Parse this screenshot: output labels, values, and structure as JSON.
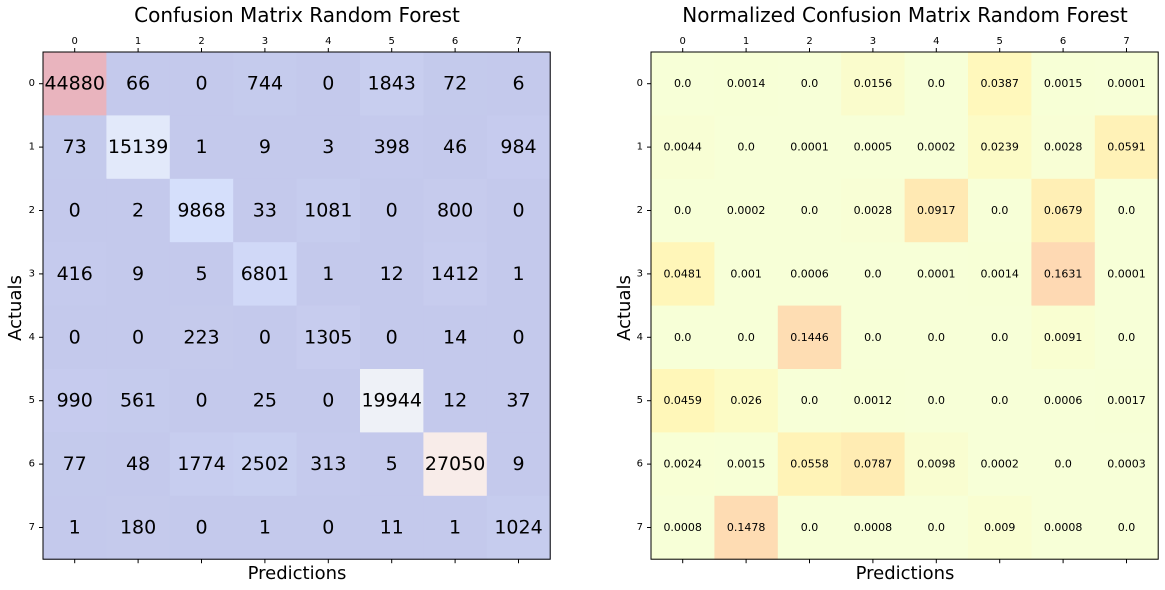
{
  "chart_data": [
    {
      "type": "heatmap",
      "title": "Confusion Matrix Random Forest",
      "xlabel": "Predictions",
      "ylabel": "Actuals",
      "x_ticks": [
        "0",
        "1",
        "2",
        "3",
        "4",
        "5",
        "6",
        "7"
      ],
      "y_ticks": [
        "0",
        "1",
        "2",
        "3",
        "4",
        "5",
        "6",
        "7"
      ],
      "colormap": "coolwarm",
      "values": [
        [
          44880,
          66,
          0,
          744,
          0,
          1843,
          72,
          6
        ],
        [
          73,
          15139,
          1,
          9,
          3,
          398,
          46,
          984
        ],
        [
          0,
          2,
          9868,
          33,
          1081,
          0,
          800,
          0
        ],
        [
          416,
          9,
          5,
          6801,
          1,
          12,
          1412,
          1
        ],
        [
          0,
          0,
          223,
          0,
          1305,
          0,
          14,
          0
        ],
        [
          990,
          561,
          0,
          25,
          0,
          19944,
          12,
          37
        ],
        [
          77,
          48,
          1774,
          2502,
          313,
          5,
          27050,
          9
        ],
        [
          1,
          180,
          0,
          1,
          0,
          11,
          1,
          1024
        ]
      ],
      "cell_labels": [
        [
          "44880",
          "66",
          "0",
          "744",
          "0",
          "1843",
          "72",
          "6"
        ],
        [
          "73",
          "15139",
          "1",
          "9",
          "3",
          "398",
          "46",
          "984"
        ],
        [
          "0",
          "2",
          "9868",
          "33",
          "1081",
          "0",
          "800",
          "0"
        ],
        [
          "416",
          "9",
          "5",
          "6801",
          "1",
          "12",
          "1412",
          "1"
        ],
        [
          "0",
          "0",
          "223",
          "0",
          "1305",
          "0",
          "14",
          "0"
        ],
        [
          "990",
          "561",
          "0",
          "25",
          "0",
          "19944",
          "12",
          "37"
        ],
        [
          "77",
          "48",
          "1774",
          "2502",
          "313",
          "5",
          "27050",
          "9"
        ],
        [
          "1",
          "180",
          "0",
          "1",
          "0",
          "11",
          "1",
          "1024"
        ]
      ]
    },
    {
      "type": "heatmap",
      "title": "Normalized Confusion Matrix Random Forest",
      "xlabel": "Predictions",
      "ylabel": "Actuals",
      "x_ticks": [
        "0",
        "1",
        "2",
        "3",
        "4",
        "5",
        "6",
        "7"
      ],
      "y_ticks": [
        "0",
        "1",
        "2",
        "3",
        "4",
        "5",
        "6",
        "7"
      ],
      "colormap": "Wistia",
      "values": [
        [
          0.0,
          0.0014,
          0.0,
          0.0156,
          0.0,
          0.0387,
          0.0015,
          0.0001
        ],
        [
          0.0044,
          0.0,
          0.0001,
          0.0005,
          0.0002,
          0.0239,
          0.0028,
          0.0591
        ],
        [
          0.0,
          0.0002,
          0.0,
          0.0028,
          0.0917,
          0.0,
          0.0679,
          0.0
        ],
        [
          0.0481,
          0.001,
          0.0006,
          0.0,
          0.0001,
          0.0014,
          0.1631,
          0.0001
        ],
        [
          0.0,
          0.0,
          0.1446,
          0.0,
          0.0,
          0.0,
          0.0091,
          0.0
        ],
        [
          0.0459,
          0.026,
          0.0,
          0.0012,
          0.0,
          0.0,
          0.0006,
          0.0017
        ],
        [
          0.0024,
          0.0015,
          0.0558,
          0.0787,
          0.0098,
          0.0002,
          0.0,
          0.0003
        ],
        [
          0.0008,
          0.1478,
          0.0,
          0.0008,
          0.0,
          0.009,
          0.0008,
          0.0
        ]
      ],
      "cell_labels": [
        [
          "0.0",
          "0.0014",
          "0.0",
          "0.0156",
          "0.0",
          "0.0387",
          "0.0015",
          "0.0001"
        ],
        [
          "0.0044",
          "0.0",
          "0.0001",
          "0.0005",
          "0.0002",
          "0.0239",
          "0.0028",
          "0.0591"
        ],
        [
          "0.0",
          "0.0002",
          "0.0",
          "0.0028",
          "0.0917",
          "0.0",
          "0.0679",
          "0.0"
        ],
        [
          "0.0481",
          "0.001",
          "0.0006",
          "0.0",
          "0.0001",
          "0.0014",
          "0.1631",
          "0.0001"
        ],
        [
          "0.0",
          "0.0",
          "0.1446",
          "0.0",
          "0.0",
          "0.0",
          "0.0091",
          "0.0"
        ],
        [
          "0.0459",
          "0.026",
          "0.0",
          "0.0012",
          "0.0",
          "0.0",
          "0.0006",
          "0.0017"
        ],
        [
          "0.0024",
          "0.0015",
          "0.0558",
          "0.0787",
          "0.0098",
          "0.0002",
          "0.0",
          "0.0003"
        ],
        [
          "0.0008",
          "0.1478",
          "0.0",
          "0.0008",
          "0.0",
          "0.009",
          "0.0008",
          "0.0"
        ]
      ]
    }
  ]
}
